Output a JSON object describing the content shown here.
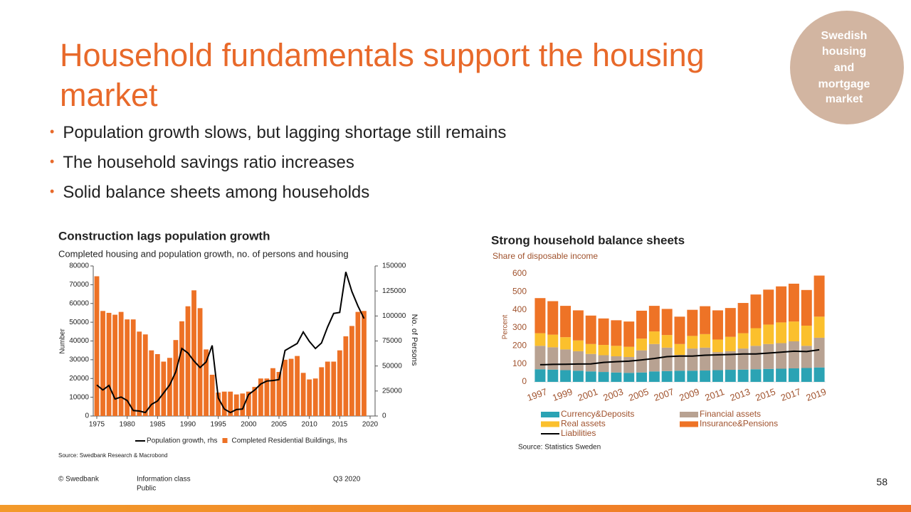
{
  "slide": {
    "title": "Household fundamentals support the housing market",
    "badge": [
      "Swedish",
      "housing",
      "and",
      "mortgage",
      "market"
    ],
    "bullets": [
      "Population growth slows, but lagging shortage still remains",
      "The household savings ratio increases",
      "Solid balance sheets among households"
    ],
    "footer": {
      "copyright": "© Swedbank",
      "info_class": "Information class",
      "info_value": "Public",
      "period": "Q3 2020",
      "page": "58"
    }
  },
  "chart_data": [
    {
      "type": "bar",
      "title": "Construction lags population growth",
      "subtitle": "Completed housing and population growth, no. of persons and housing",
      "ylabel": "Number",
      "y2label": "No. of Persons",
      "source": "Source: Swedbank Research & Macrobond",
      "x": [
        1975,
        1976,
        1977,
        1978,
        1979,
        1980,
        1981,
        1982,
        1983,
        1984,
        1985,
        1986,
        1987,
        1988,
        1989,
        1990,
        1991,
        1992,
        1993,
        1994,
        1995,
        1996,
        1997,
        1998,
        1999,
        2000,
        2001,
        2002,
        2003,
        2004,
        2005,
        2006,
        2007,
        2008,
        2009,
        2010,
        2011,
        2012,
        2013,
        2014,
        2015,
        2016,
        2017,
        2018,
        2019
      ],
      "xlim": [
        1975,
        2020
      ],
      "xticks": [
        1975,
        1980,
        1985,
        1990,
        1995,
        2000,
        2005,
        2010,
        2015,
        2020
      ],
      "ylim": [
        0,
        80000
      ],
      "yticks": [
        0,
        10000,
        20000,
        30000,
        40000,
        50000,
        60000,
        70000,
        80000
      ],
      "y2lim": [
        0,
        150000
      ],
      "y2ticks": [
        0,
        25000,
        50000,
        75000,
        100000,
        125000,
        150000
      ],
      "series": [
        {
          "name": "Population growth, rhs",
          "type": "line",
          "axis": "y2",
          "color": "#000000",
          "values": [
            31000,
            26000,
            30500,
            17000,
            19000,
            15500,
            5500,
            5000,
            3500,
            11500,
            15000,
            23000,
            31000,
            44000,
            67500,
            63000,
            55000,
            48500,
            54000,
            70500,
            18000,
            7000,
            3500,
            6500,
            7000,
            21500,
            26000,
            32000,
            35000,
            35500,
            36500,
            65500,
            69000,
            72500,
            84000,
            74500,
            67500,
            73000,
            89000,
            102500,
            103500,
            144000,
            124500,
            110000,
            97500
          ]
        },
        {
          "name": "Completed Residential Buildings, lhs",
          "color": "#ed7125",
          "values": [
            74500,
            56000,
            55000,
            54000,
            55500,
            51500,
            51500,
            45000,
            43500,
            35000,
            33000,
            29000,
            31000,
            40500,
            50500,
            58500,
            67000,
            57500,
            35500,
            22000,
            12500,
            13000,
            13000,
            11500,
            12000,
            13000,
            15500,
            20000,
            20000,
            25500,
            23500,
            30000,
            30500,
            32000,
            23000,
            19500,
            20000,
            26000,
            29000,
            29000,
            35000,
            42500,
            48000,
            55500,
            56000
          ]
        }
      ]
    },
    {
      "type": "bar",
      "stacked": true,
      "title": "Strong household balance sheets",
      "subtitle": "Share of disposable income",
      "ylabel": "Percent",
      "source": "Source: Statistics Sweden",
      "categories": [
        "1997",
        null,
        "1999",
        null,
        "2001",
        null,
        "2003",
        null,
        "2005",
        null,
        "2007",
        null,
        "2009",
        null,
        "2011",
        null,
        "2013",
        null,
        "2015",
        null,
        "2017",
        null,
        "2019"
      ],
      "ylim": [
        0,
        600
      ],
      "yticks": [
        0,
        100,
        200,
        300,
        400,
        500,
        600
      ],
      "series": [
        {
          "name": "Currency&Deposits",
          "color": "#2ba3b4",
          "values": [
            70,
            68,
            65,
            62,
            58,
            55,
            52,
            50,
            52,
            58,
            60,
            62,
            62,
            63,
            65,
            67,
            68,
            70,
            72,
            73,
            75,
            77,
            80
          ]
        },
        {
          "name": "Financial assets",
          "color": "#b8a292",
          "values": [
            130,
            124,
            115,
            108,
            97,
            93,
            90,
            88,
            123,
            152,
            130,
            88,
            123,
            127,
            100,
            103,
            117,
            130,
            138,
            142,
            150,
            123,
            165
          ]
        },
        {
          "name": "Real assets",
          "color": "#fbc02d",
          "values": [
            70,
            70,
            68,
            60,
            55,
            57,
            58,
            57,
            65,
            70,
            70,
            60,
            70,
            75,
            70,
            80,
            85,
            98,
            108,
            115,
            110,
            112,
            117
          ]
        },
        {
          "name": "Insurance&Pensions",
          "color": "#ee7326",
          "values": [
            195,
            186,
            174,
            167,
            158,
            147,
            142,
            140,
            155,
            142,
            145,
            152,
            145,
            155,
            162,
            160,
            168,
            187,
            194,
            200,
            210,
            198,
            228
          ]
        },
        {
          "name": "Liabilities",
          "type": "line",
          "color": "#000000",
          "values": [
            95,
            97,
            98,
            99,
            100,
            108,
            112,
            115,
            122,
            130,
            140,
            143,
            143,
            148,
            150,
            152,
            155,
            155,
            160,
            165,
            170,
            168,
            178
          ]
        }
      ]
    }
  ]
}
